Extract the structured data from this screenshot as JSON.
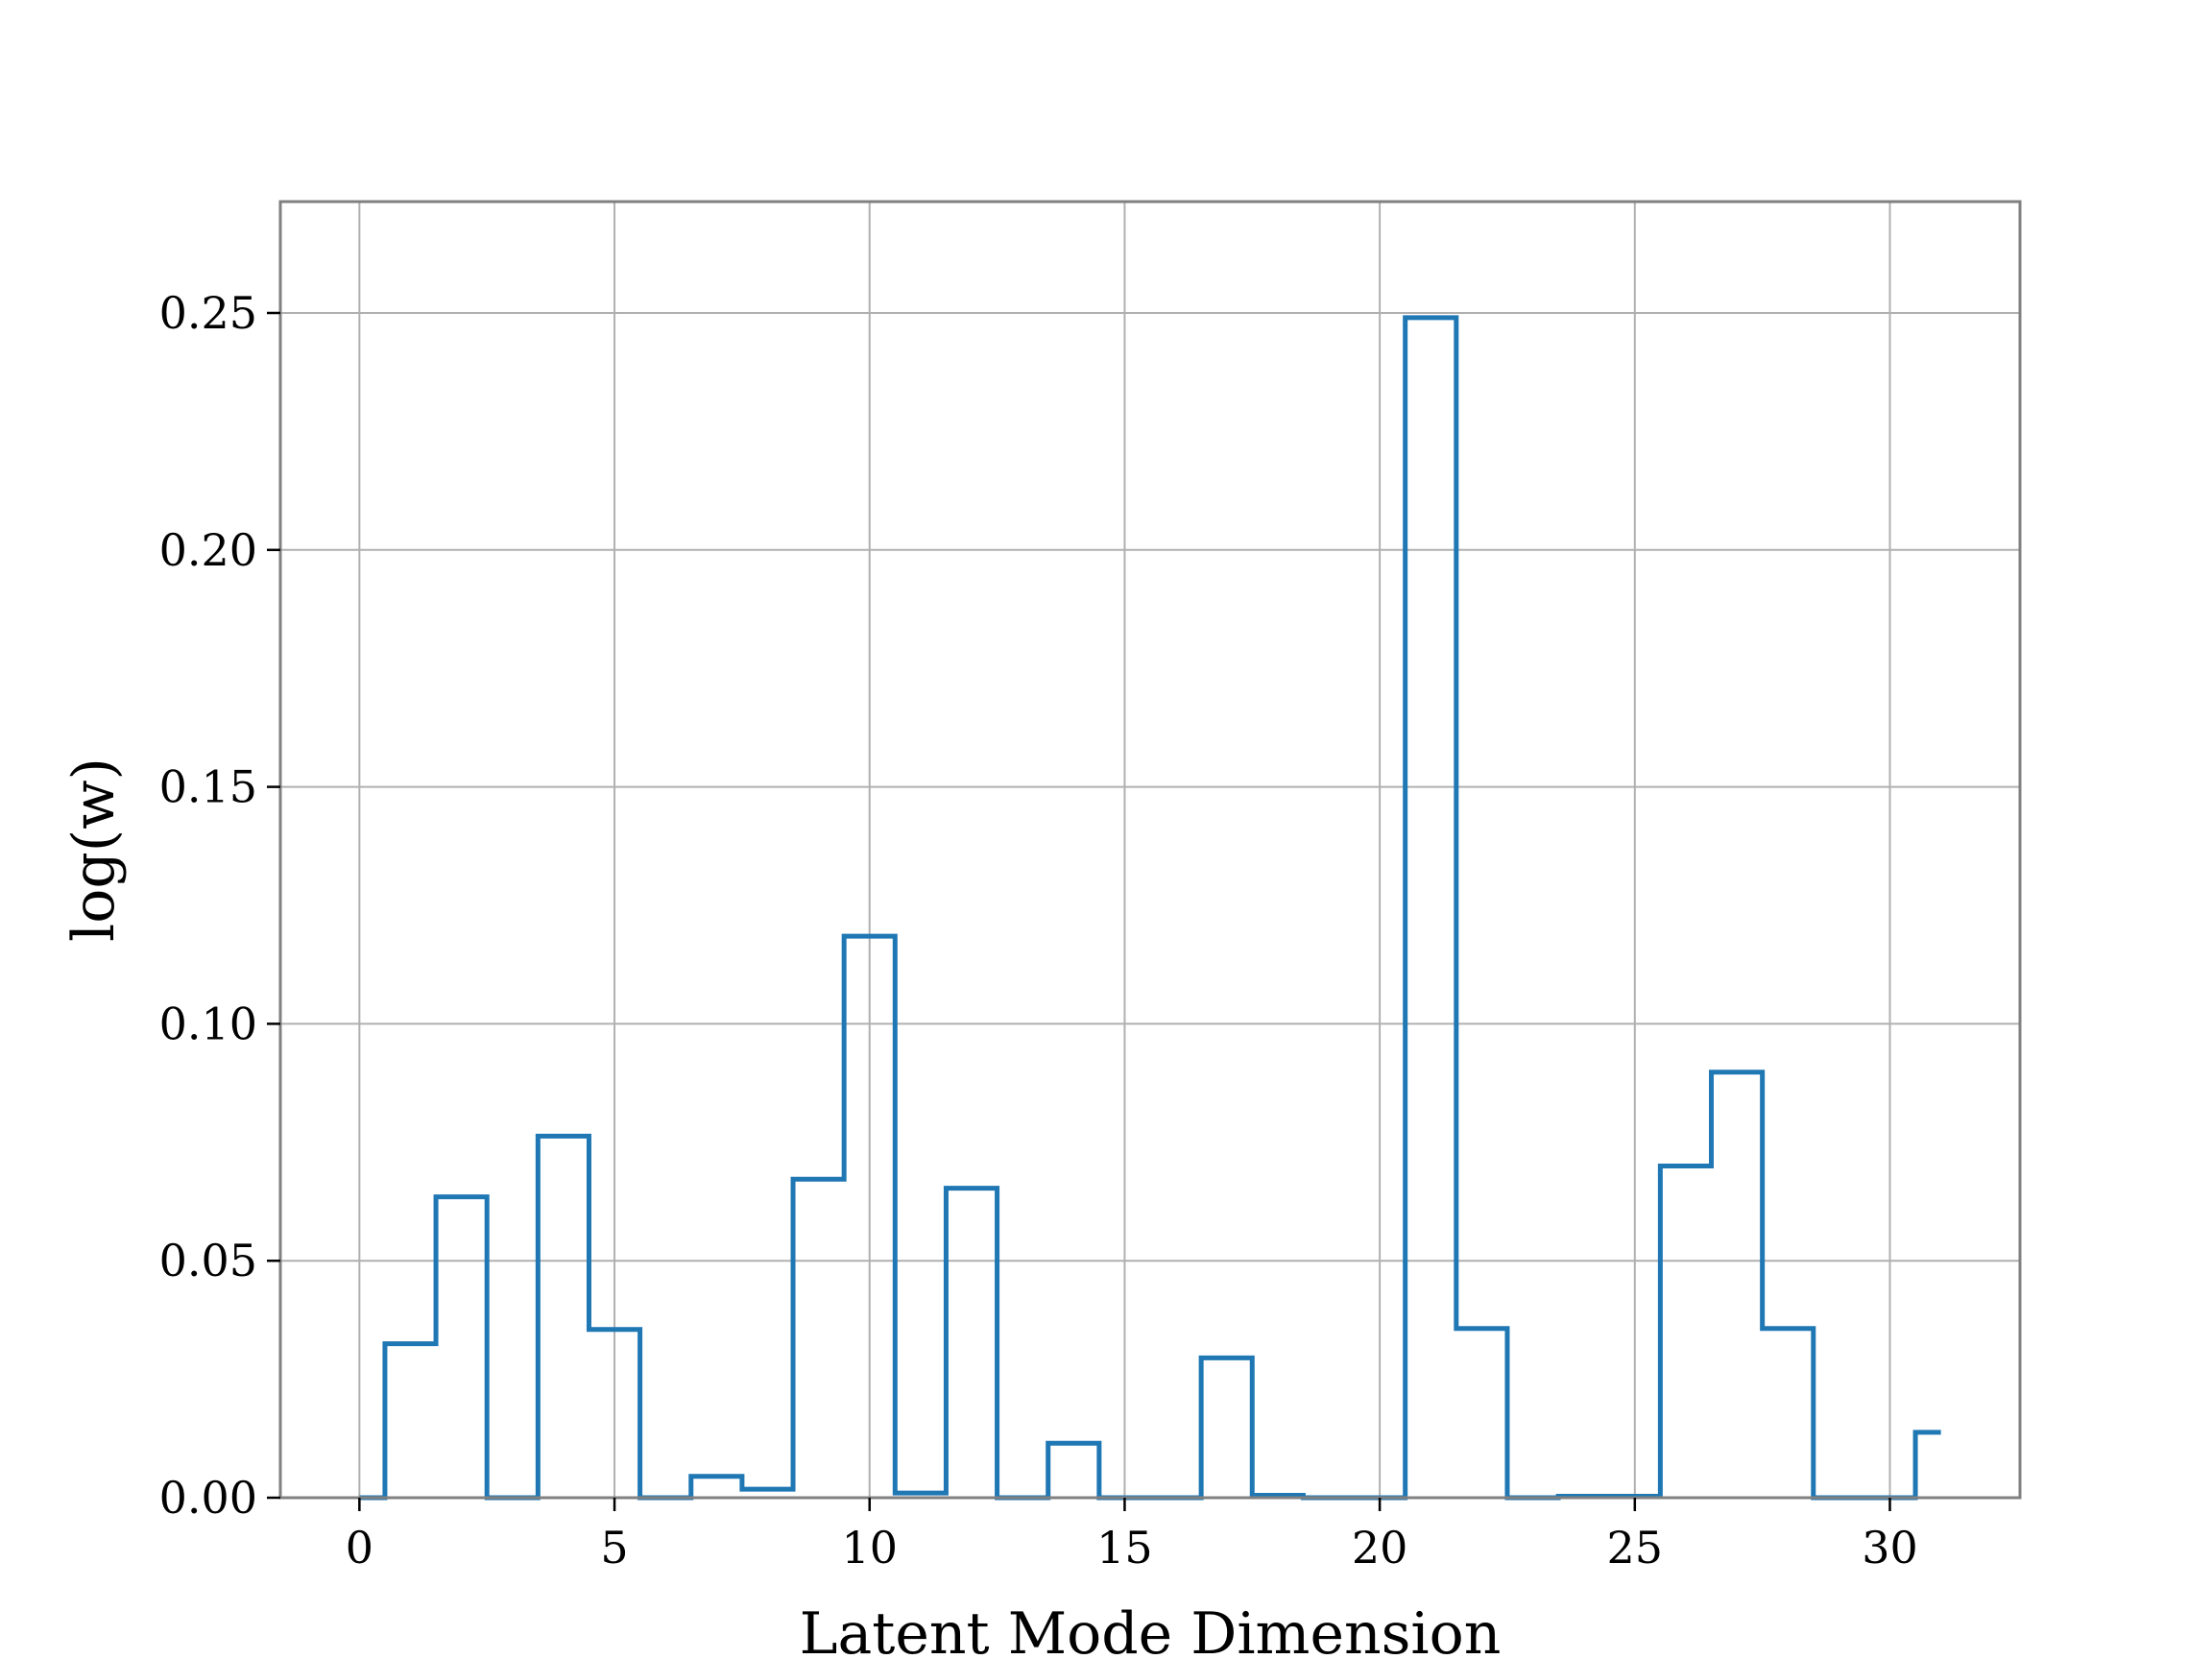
{
  "chart_data": {
    "type": "line",
    "drawstyle": "steps-mid",
    "title": "",
    "xlabel": "Latent Mode Dimension",
    "ylabel": "log(w)",
    "xlim": [
      -1.55,
      32.55
    ],
    "ylim": [
      0,
      0.2735
    ],
    "xticks": [
      0,
      5,
      10,
      15,
      20,
      25,
      30
    ],
    "xtick_labels": [
      "0",
      "5",
      "10",
      "15",
      "20",
      "25",
      "30"
    ],
    "yticks": [
      0,
      0.05,
      0.1,
      0.15,
      0.2,
      0.25
    ],
    "ytick_labels": [
      "0.00",
      "0.05",
      "0.10",
      "0.15",
      "0.20",
      "0.25"
    ],
    "grid": true,
    "legend": "none",
    "series": [
      {
        "color": "#1f77b4",
        "x": [
          0,
          1,
          2,
          3,
          4,
          5,
          6,
          7,
          8,
          9,
          10,
          11,
          12,
          13,
          14,
          15,
          16,
          17,
          18,
          19,
          20,
          21,
          22,
          23,
          24,
          25,
          26,
          27,
          28,
          29,
          30,
          31
        ],
        "y": [
          0.0,
          0.0325,
          0.0635,
          0.0,
          0.0763,
          0.0355,
          0.0,
          0.0045,
          0.0018,
          0.0672,
          0.1185,
          0.001,
          0.0653,
          0.0,
          0.0115,
          0.0,
          0.0,
          0.0295,
          0.0005,
          0.0,
          0.0,
          0.249,
          0.0357,
          0.0,
          0.0003,
          0.0003,
          0.07,
          0.0898,
          0.0357,
          0.0,
          0.0,
          0.0138
        ]
      }
    ]
  }
}
